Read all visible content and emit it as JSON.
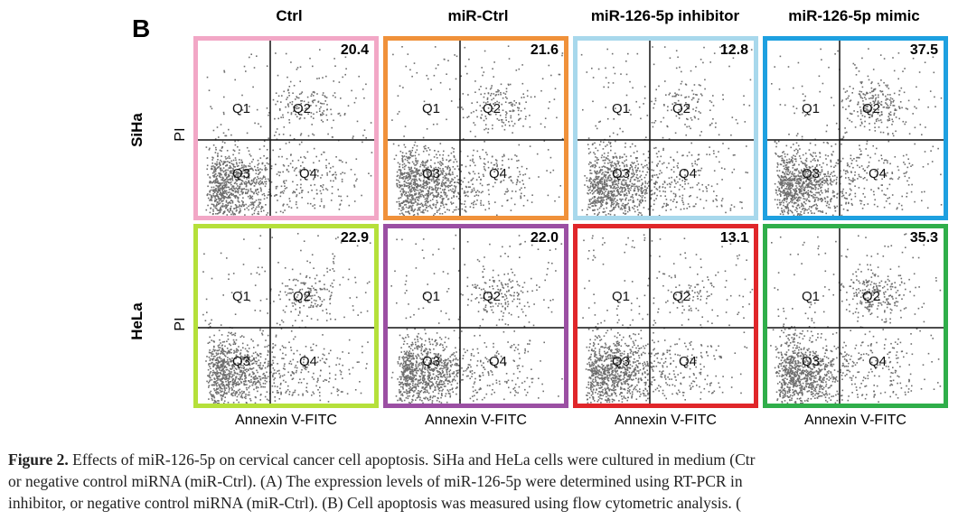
{
  "panel_letter": "B",
  "columns": [
    "Ctrl",
    "miR-Ctrl",
    "miR-126-5p inhibitor",
    "miR-126-5p mimic"
  ],
  "rows": [
    "SiHa",
    "HeLa"
  ],
  "y_axis_label": "PI",
  "x_axis_label": "Annexin V-FITC",
  "quadrants": [
    "Q1",
    "Q2",
    "Q3",
    "Q4"
  ],
  "colors": {
    "border_ctrl": "#f2a7c6",
    "border_mirctrl_siha": "#f0913a",
    "border_inhibitor_siha": "#a8d8ec",
    "border_mimic_siha": "#1ea0e0",
    "border_ctrl_hela": "#b5e03a",
    "border_mirctrl_hela": "#9b4fa3",
    "border_inhibitor_hela": "#e0262a",
    "border_mimic_hela": "#2fae4a",
    "dots": "#6e6e6e"
  },
  "panels": [
    {
      "row": "SiHa",
      "column": "Ctrl",
      "value": "20.4",
      "border": "#f2a7c6"
    },
    {
      "row": "SiHa",
      "column": "miR-Ctrl",
      "value": "21.6",
      "border": "#f0913a"
    },
    {
      "row": "SiHa",
      "column": "miR-126-5p inhibitor",
      "value": "12.8",
      "border": "#a8d8ec"
    },
    {
      "row": "SiHa",
      "column": "miR-126-5p mimic",
      "value": "37.5",
      "border": "#1ea0e0"
    },
    {
      "row": "HeLa",
      "column": "Ctrl",
      "value": "22.9",
      "border": "#b5e03a"
    },
    {
      "row": "HeLa",
      "column": "miR-Ctrl",
      "value": "22.0",
      "border": "#9b4fa3"
    },
    {
      "row": "HeLa",
      "column": "miR-126-5p inhibitor",
      "value": "13.1",
      "border": "#e0262a"
    },
    {
      "row": "HeLa",
      "column": "miR-126-5p mimic",
      "value": "35.3",
      "border": "#2fae4a"
    }
  ],
  "caption": {
    "title": "Figure 2.",
    "line1": " Effects of miR-126-5p on cervical cancer cell apoptosis. SiHa and HeLa cells were cultured in medium (Ctr",
    "line2": "or negative control miRNA (miR-Ctrl). (A) The expression levels of miR-126-5p were determined using RT-PCR in",
    "line3": "inhibitor, or negative control miRNA (miR-Ctrl). (B) Cell apoptosis was measured using flow cytometric analysis. ("
  }
}
